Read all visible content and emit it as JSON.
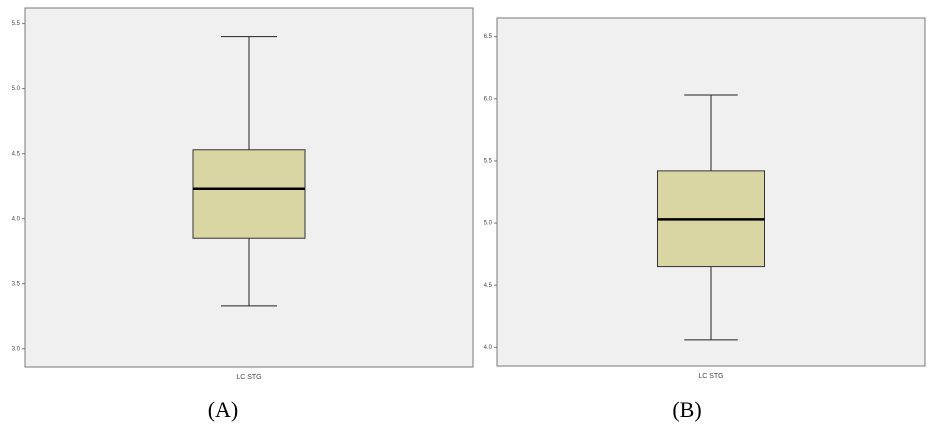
{
  "chart_data": [
    {
      "type": "box",
      "caption": "(A)",
      "categories": [
        "LC STG"
      ],
      "color": "#d9d6a3",
      "boxes": [
        {
          "min": 3.33,
          "q1": 3.85,
          "median": 4.23,
          "q3": 4.53,
          "max": 5.4
        }
      ],
      "ylim": [
        2.86,
        5.62
      ],
      "yticks": [
        {
          "value": 3,
          "label": "3.0"
        },
        {
          "value": 3.5,
          "label": "3.5"
        },
        {
          "value": 4,
          "label": "4.0"
        },
        {
          "value": 4.5,
          "label": "4.5"
        },
        {
          "value": 5,
          "label": "5.0"
        },
        {
          "value": 5.5,
          "label": "5.5"
        }
      ]
    },
    {
      "type": "box",
      "caption": "(B)",
      "categories": [
        "LC STG"
      ],
      "color": "#d9d6a3",
      "boxes": [
        {
          "min": 4.06,
          "q1": 4.65,
          "median": 5.03,
          "q3": 5.42,
          "max": 6.03
        }
      ],
      "ylim": [
        3.85,
        6.65
      ],
      "yticks": [
        {
          "value": 4,
          "label": "4.0"
        },
        {
          "value": 4.5,
          "label": "4.5"
        },
        {
          "value": 5,
          "label": "5.0"
        },
        {
          "value": 5.5,
          "label": "5.5"
        },
        {
          "value": 6,
          "label": "6.0"
        },
        {
          "value": 6.5,
          "label": "6.5"
        }
      ]
    }
  ]
}
